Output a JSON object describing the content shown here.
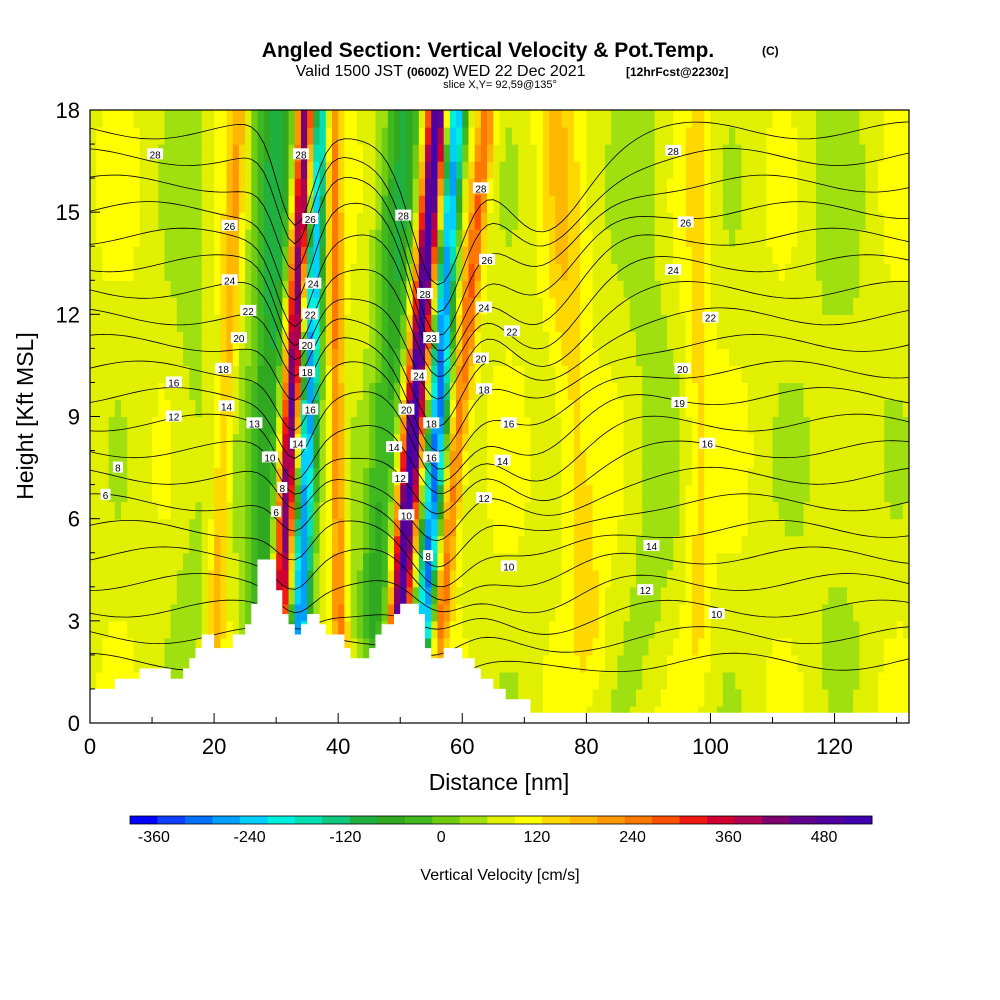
{
  "header": {
    "title": "Angled Section: Vertical Velocity & Pot.Temp.",
    "title_units": "(C)",
    "valid_prefix": "Valid 1500 JST",
    "valid_utc": "(0600Z)",
    "valid_date": "WED 22 Dec 2021",
    "forecast": "[12hrFcst@2230z]",
    "slice": "slice X,Y= 92,59@135°"
  },
  "colorbar": {
    "title": "Vertical Velocity [cm/s]",
    "labels": [
      "-360",
      "-240",
      "-120",
      "0",
      "120",
      "240",
      "360",
      "480"
    ],
    "label_values": [
      -360,
      -240,
      -120,
      0,
      120,
      240,
      360,
      480
    ],
    "min": -390,
    "max": 540,
    "step": 30,
    "colors": [
      "#0000ff",
      "#1040ff",
      "#0070ff",
      "#00a0ff",
      "#00d0ff",
      "#00f0e0",
      "#00e0b0",
      "#10c880",
      "#20b040",
      "#30a820",
      "#40b820",
      "#70cc10",
      "#a0e010",
      "#e0f000",
      "#ffff00",
      "#ffd800",
      "#ffb800",
      "#ff9800",
      "#ff7800",
      "#ff5000",
      "#f01810",
      "#d00030",
      "#b00050",
      "#800070",
      "#600090",
      "#5000a0",
      "#4000b0"
    ]
  },
  "chart_data": {
    "type": "heatmap",
    "title": "Angled Section: Vertical Velocity & Pot.Temp.",
    "xlabel": "Distance [nm]",
    "ylabel": "Height [Kft MSL]",
    "xlim": [
      0,
      132
    ],
    "ylim": [
      0,
      18
    ],
    "x_ticks": [
      "0",
      "20",
      "40",
      "60",
      "80",
      "100",
      "120"
    ],
    "x_tick_values": [
      0,
      20,
      40,
      60,
      80,
      100,
      120
    ],
    "y_ticks": [
      "0",
      "3",
      "6",
      "9",
      "12",
      "15",
      "18"
    ],
    "y_tick_values": [
      0,
      3,
      6,
      9,
      12,
      15,
      18
    ],
    "field": "Vertical Velocity [cm/s]",
    "background_velocity": 20,
    "updraft_bands": [
      {
        "x_at_6": 31.5,
        "x_at_18": 35,
        "peak": 380,
        "width": 1.6
      },
      {
        "x_at_6": 51,
        "x_at_18": 56,
        "peak": 390,
        "width": 1.7
      },
      {
        "x_at_6": 58,
        "x_at_18": 64,
        "peak": 160,
        "width": 1.5
      },
      {
        "x_at_6": 40,
        "x_at_18": 39,
        "peak": 140,
        "width": 1.2
      },
      {
        "x_at_6": 21,
        "x_at_18": 24,
        "peak": 90,
        "width": 1.4
      },
      {
        "x_at_6": 79,
        "x_at_18": 75,
        "peak": 60,
        "width": 3.0
      },
      {
        "x_at_6": 98,
        "x_at_18": 98,
        "peak": 50,
        "width": 2.0
      }
    ],
    "downdraft_bands": [
      {
        "x_at_6": 34.5,
        "x_at_18": 37,
        "peak": -320,
        "width": 1.6
      },
      {
        "x_at_6": 55,
        "x_at_18": 59,
        "peak": -330,
        "width": 1.6
      },
      {
        "x_at_6": 29,
        "x_at_18": 30,
        "peak": -150,
        "width": 3.5
      },
      {
        "x_at_6": 47,
        "x_at_18": 51,
        "peak": -130,
        "width": 3.0
      },
      {
        "x_at_6": 16,
        "x_at_18": 16,
        "peak": -30,
        "width": 3.0
      },
      {
        "x_at_6": 90,
        "x_at_18": 90,
        "peak": -30,
        "width": 4.0
      },
      {
        "x_at_6": 120,
        "x_at_18": 120,
        "peak": -20,
        "width": 6.0
      }
    ],
    "theta_levels": [
      8,
      9,
      10,
      11,
      12,
      13,
      14,
      15,
      16,
      17,
      18,
      19,
      20,
      21,
      22,
      23,
      24,
      25,
      26,
      27,
      28
    ],
    "contour_labels": [
      {
        "text": "28",
        "x": 10.5,
        "y": 16.7
      },
      {
        "text": "26",
        "x": 22.5,
        "y": 14.6
      },
      {
        "text": "24",
        "x": 22.5,
        "y": 13.0
      },
      {
        "text": "22",
        "x": 25.5,
        "y": 12.1
      },
      {
        "text": "20",
        "x": 24,
        "y": 11.3
      },
      {
        "text": "18",
        "x": 21.5,
        "y": 10.4
      },
      {
        "text": "16",
        "x": 13.5,
        "y": 10.0
      },
      {
        "text": "14",
        "x": 22,
        "y": 9.3
      },
      {
        "text": "12",
        "x": 13.5,
        "y": 9.0
      },
      {
        "text": "13",
        "x": 26.5,
        "y": 8.8
      },
      {
        "text": "10",
        "x": 29,
        "y": 7.8
      },
      {
        "text": "8",
        "x": 4.5,
        "y": 7.5
      },
      {
        "text": "6",
        "x": 2.5,
        "y": 6.7
      },
      {
        "text": "8",
        "x": 31,
        "y": 6.9
      },
      {
        "text": "6",
        "x": 30,
        "y": 6.2
      },
      {
        "text": "28",
        "x": 34,
        "y": 16.7
      },
      {
        "text": "26",
        "x": 35.5,
        "y": 14.8
      },
      {
        "text": "24",
        "x": 36,
        "y": 12.9
      },
      {
        "text": "22",
        "x": 35.5,
        "y": 12.0
      },
      {
        "text": "20",
        "x": 35,
        "y": 11.1
      },
      {
        "text": "18",
        "x": 35,
        "y": 10.3
      },
      {
        "text": "16",
        "x": 35.5,
        "y": 9.2
      },
      {
        "text": "14",
        "x": 33.5,
        "y": 8.2
      },
      {
        "text": "28",
        "x": 50.5,
        "y": 14.9
      },
      {
        "text": "28",
        "x": 54,
        "y": 12.6
      },
      {
        "text": "23",
        "x": 55,
        "y": 11.3
      },
      {
        "text": "24",
        "x": 53,
        "y": 10.2
      },
      {
        "text": "20",
        "x": 51,
        "y": 9.2
      },
      {
        "text": "18",
        "x": 55,
        "y": 8.8
      },
      {
        "text": "16",
        "x": 55,
        "y": 7.8
      },
      {
        "text": "14",
        "x": 49,
        "y": 8.1
      },
      {
        "text": "12",
        "x": 50,
        "y": 7.2
      },
      {
        "text": "10",
        "x": 51,
        "y": 6.1
      },
      {
        "text": "8",
        "x": 54.5,
        "y": 4.9
      },
      {
        "text": "28",
        "x": 63,
        "y": 15.7
      },
      {
        "text": "26",
        "x": 64,
        "y": 13.6
      },
      {
        "text": "24",
        "x": 63.5,
        "y": 12.2
      },
      {
        "text": "22",
        "x": 68,
        "y": 11.5
      },
      {
        "text": "20",
        "x": 63,
        "y": 10.7
      },
      {
        "text": "18",
        "x": 63.5,
        "y": 9.8
      },
      {
        "text": "16",
        "x": 67.5,
        "y": 8.8
      },
      {
        "text": "14",
        "x": 66.5,
        "y": 7.7
      },
      {
        "text": "12",
        "x": 63.5,
        "y": 6.6
      },
      {
        "text": "10",
        "x": 67.5,
        "y": 4.6
      },
      {
        "text": "28",
        "x": 94,
        "y": 16.8
      },
      {
        "text": "26",
        "x": 96,
        "y": 14.7
      },
      {
        "text": "24",
        "x": 94,
        "y": 13.3
      },
      {
        "text": "22",
        "x": 100,
        "y": 11.9
      },
      {
        "text": "20",
        "x": 95.5,
        "y": 10.4
      },
      {
        "text": "19",
        "x": 95,
        "y": 9.4
      },
      {
        "text": "16",
        "x": 99.5,
        "y": 8.2
      },
      {
        "text": "14",
        "x": 90.5,
        "y": 5.2
      },
      {
        "text": "12",
        "x": 89.5,
        "y": 3.9
      },
      {
        "text": "10",
        "x": 101,
        "y": 3.2
      }
    ],
    "terrain": [
      [
        0,
        1.0
      ],
      [
        4,
        1.0
      ],
      [
        4,
        1.3
      ],
      [
        8,
        1.3
      ],
      [
        8,
        1.6
      ],
      [
        13,
        1.6
      ],
      [
        13,
        1.3
      ],
      [
        15,
        1.3
      ],
      [
        15,
        1.6
      ],
      [
        16,
        1.6
      ],
      [
        16,
        1.9
      ],
      [
        17,
        1.9
      ],
      [
        17,
        2.2
      ],
      [
        18,
        2.2
      ],
      [
        18,
        2.6
      ],
      [
        20,
        2.6
      ],
      [
        20,
        2.2
      ],
      [
        23,
        2.2
      ],
      [
        23,
        2.6
      ],
      [
        25,
        2.6
      ],
      [
        25,
        2.9
      ],
      [
        26,
        2.9
      ],
      [
        26,
        3.5
      ],
      [
        27,
        3.5
      ],
      [
        27,
        4.8
      ],
      [
        30,
        4.8
      ],
      [
        30,
        3.9
      ],
      [
        31,
        3.9
      ],
      [
        31,
        3.2
      ],
      [
        32,
        3.2
      ],
      [
        32,
        2.9
      ],
      [
        33,
        2.9
      ],
      [
        33,
        2.6
      ],
      [
        34,
        2.6
      ],
      [
        34,
        2.9
      ],
      [
        35,
        2.9
      ],
      [
        35,
        3.2
      ],
      [
        37,
        3.2
      ],
      [
        37,
        2.9
      ],
      [
        38,
        2.9
      ],
      [
        38,
        2.6
      ],
      [
        41,
        2.6
      ],
      [
        41,
        2.2
      ],
      [
        42,
        2.2
      ],
      [
        42,
        1.9
      ],
      [
        45,
        1.9
      ],
      [
        45,
        2.2
      ],
      [
        46,
        2.2
      ],
      [
        46,
        2.6
      ],
      [
        47,
        2.6
      ],
      [
        47,
        2.9
      ],
      [
        49,
        2.9
      ],
      [
        49,
        3.2
      ],
      [
        50,
        3.2
      ],
      [
        50,
        3.5
      ],
      [
        53,
        3.5
      ],
      [
        53,
        3.2
      ],
      [
        54,
        3.2
      ],
      [
        54,
        2.2
      ],
      [
        55,
        2.2
      ],
      [
        55,
        1.9
      ],
      [
        57,
        1.9
      ],
      [
        57,
        2.2
      ],
      [
        60,
        2.2
      ],
      [
        60,
        1.9
      ],
      [
        62,
        1.9
      ],
      [
        62,
        1.6
      ],
      [
        63,
        1.6
      ],
      [
        63,
        1.3
      ],
      [
        65,
        1.3
      ],
      [
        65,
        1.0
      ],
      [
        67,
        1.0
      ],
      [
        67,
        0.7
      ],
      [
        71,
        0.7
      ],
      [
        71,
        0.3
      ],
      [
        132,
        0.3
      ]
    ]
  }
}
